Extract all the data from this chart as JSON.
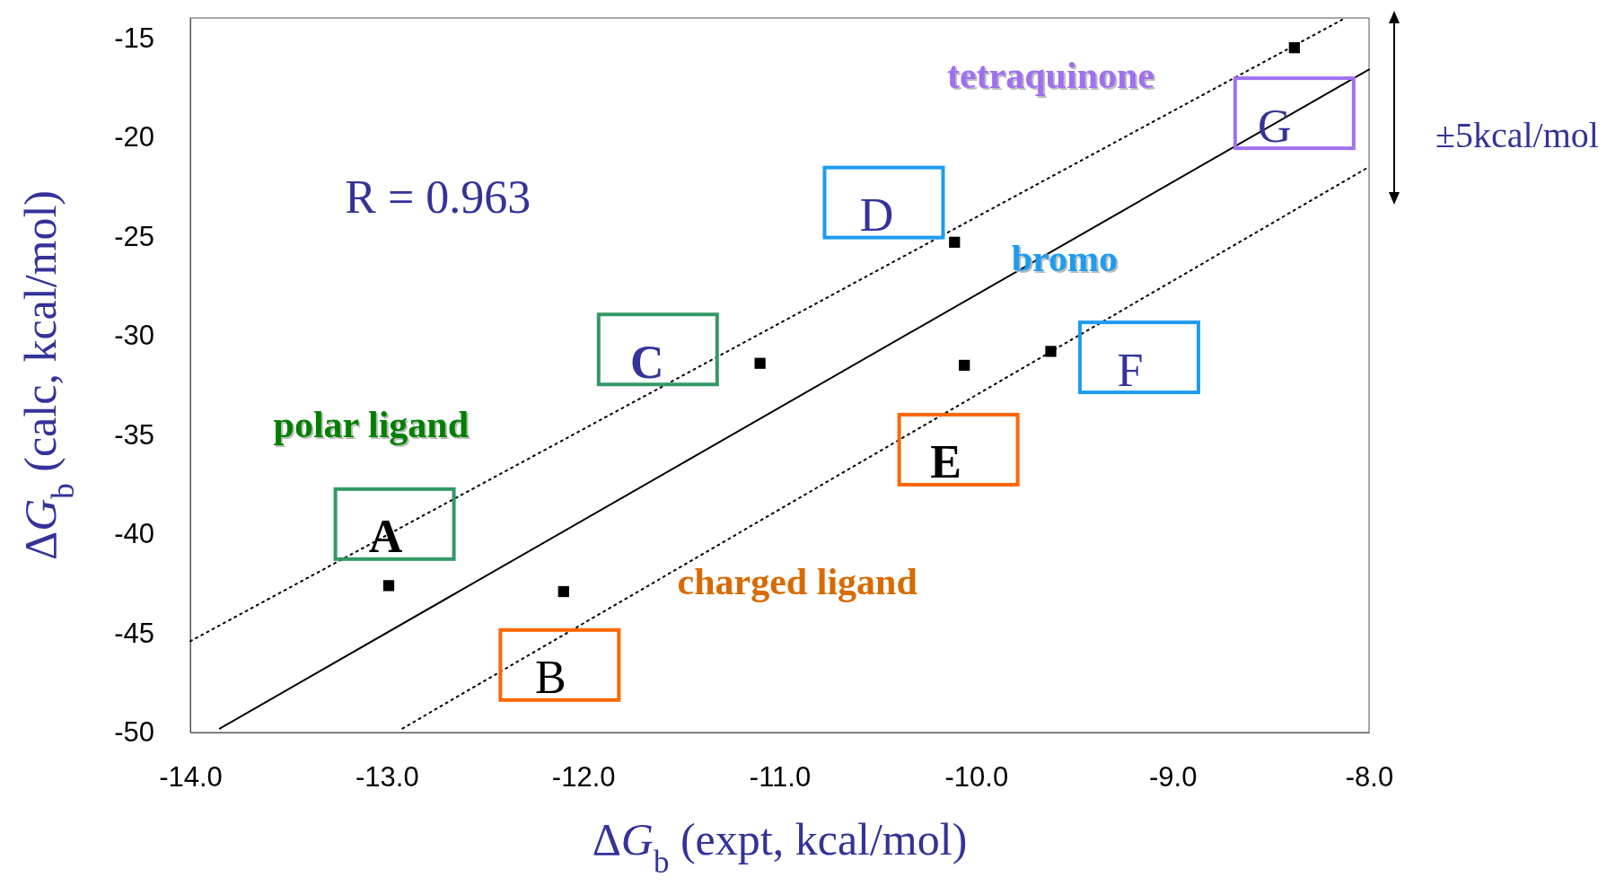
{
  "chart_data": {
    "type": "scatter",
    "xlabel": "ΔG$_{b}$ (expt, kcal/mol)",
    "ylabel": "ΔG$_{b}$  (calc, kcal/mol)",
    "xlim": [
      -14,
      -8
    ],
    "ylim": [
      -50,
      -14
    ],
    "xticks": [
      {
        "value": -14,
        "label": "-14.0"
      },
      {
        "value": -13,
        "label": "-13.0"
      },
      {
        "value": -12,
        "label": "-12.0"
      },
      {
        "value": -11,
        "label": "-11.0"
      },
      {
        "value": -10,
        "label": "-10.0"
      },
      {
        "value": -9,
        "label": "-9.0"
      },
      {
        "value": -8,
        "label": "-8.0"
      }
    ],
    "yticks": [
      -50,
      -45,
      -40,
      -35,
      -30,
      -25,
      -20,
      -15
    ],
    "grid": false,
    "marker": "square",
    "series": [
      {
        "type": "scatter",
        "color": "#000000",
        "x": [
          -12.99,
          -12.1,
          -11.1,
          -10.11,
          -10.06,
          -9.62,
          -8.38
        ],
        "values": [
          -42.6,
          -42.9,
          -31.4,
          -25.3,
          -31.5,
          -30.8,
          -15.5
        ]
      },
      {
        "type": "line",
        "color": "#000000",
        "line_style": "solid",
        "marker": "none",
        "x": [
          -13.85,
          -8
        ],
        "values": [
          -49.8,
          -16.6
        ]
      },
      {
        "type": "line",
        "color": "#000000",
        "line_style": "dotted",
        "marker": "none",
        "x": [
          -14,
          -8.12
        ],
        "values": [
          -45.4,
          -14
        ]
      },
      {
        "type": "line",
        "color": "#000000",
        "line_style": "dotted",
        "marker": "none",
        "x": [
          -12.92,
          -8
        ],
        "values": [
          -49.8,
          -21.5
        ]
      }
    ],
    "annotations": [
      "R = 0.963",
      "polar ligand",
      "charged ligand",
      "bromo",
      "tetraquinone",
      "A",
      "B",
      "C",
      "D",
      "E",
      "F",
      "G",
      "±5kcal/mol"
    ]
  }
}
